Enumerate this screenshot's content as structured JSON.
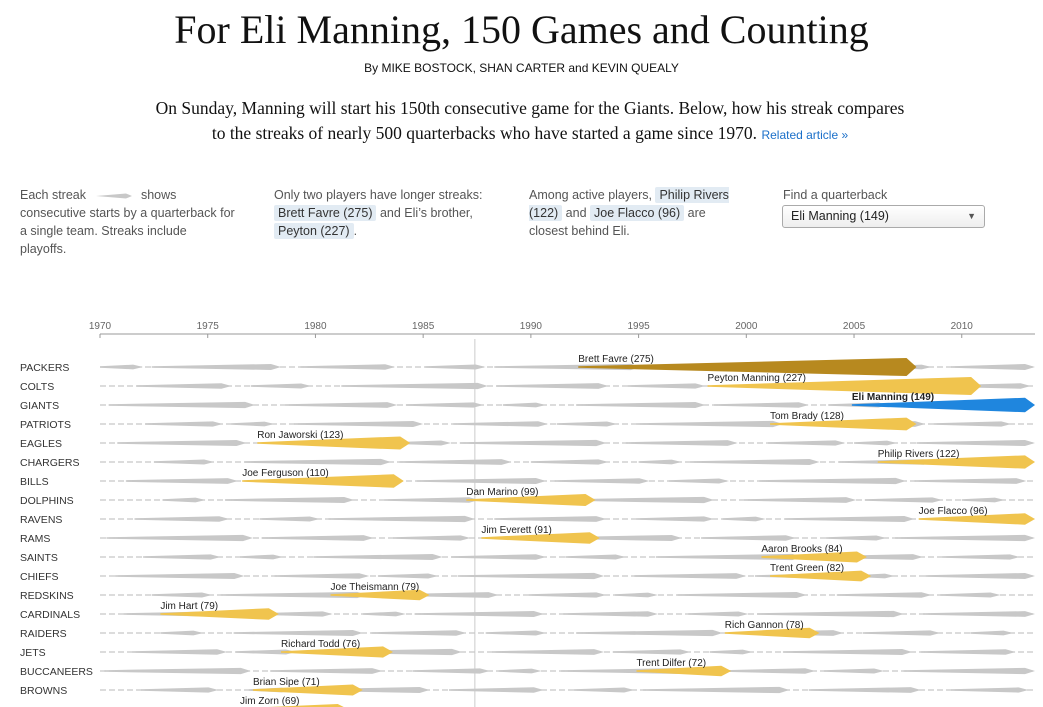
{
  "header": {
    "title": "For Eli Manning, 150 Games and Counting",
    "byline": "By MIKE BOSTOCK, SHAN CARTER and KEVIN QUEALY",
    "dek": "On Sunday, Manning will start his 150th consecutive game for the Giants. Below, how his streak compares to the streaks of nearly 500 quarterbacks who have started a game since 1970.",
    "related_link": "Related article »"
  },
  "notes": {
    "legend_pre": "Each streak",
    "legend_post": "shows consecutive starts by a quarterback for a single team. Streaks include playoffs.",
    "longer_pre": "Only two players have longer streaks:",
    "longer_chip1": "Brett Favre (275)",
    "longer_mid": "and Eli’s brother,",
    "longer_chip2": "Peyton (227)",
    "longer_end": ".",
    "active_pre": "Among active players,",
    "active_chip1": "Philip Rivers (122)",
    "active_mid": "and",
    "active_chip2": "Joe Flacco (96)",
    "active_post": "are closest behind Eli.",
    "find_label": "Find a quarterback",
    "find_value": "Eli Manning (149)"
  },
  "colors": {
    "gold": "#f0c44e",
    "favre": "#b7891f",
    "eli": "#1f86de",
    "gray": "#c8c8c8"
  },
  "chart_data": {
    "type": "timeline",
    "x_ticks": [
      1970,
      1975,
      1980,
      1985,
      1990,
      1995,
      2000,
      2005,
      2010
    ],
    "xlim": [
      1970,
      2013.4
    ],
    "teams": [
      "PACKERS",
      "COLTS",
      "GIANTS",
      "PATRIOTS",
      "EAGLES",
      "CHARGERS",
      "BILLS",
      "DOLPHINS",
      "RAVENS",
      "RAMS",
      "SAINTS",
      "CHIEFS",
      "REDSKINS",
      "CARDINALS",
      "RAIDERS",
      "JETS",
      "BUCCANEERS",
      "BROWNS"
    ],
    "streaks": [
      {
        "team": "PACKERS",
        "label": "Brett Favre (275)",
        "start": 1992.2,
        "end": 2007.9,
        "color": "#b7891f"
      },
      {
        "team": "COLTS",
        "label": "Peyton Manning (227)",
        "start": 1998.2,
        "end": 2010.9,
        "color": "#f0c44e"
      },
      {
        "team": "GIANTS",
        "label": "Eli Manning (149)",
        "start": 2004.9,
        "end": 2013.4,
        "color": "#1f86de",
        "highlight": true
      },
      {
        "team": "PATRIOTS",
        "label": "Tom Brady (128)",
        "start": 2001.1,
        "end": 2007.9,
        "color": "#f0c44e"
      },
      {
        "team": "EAGLES",
        "label": "Ron Jaworski (123)",
        "start": 1977.3,
        "end": 1984.4,
        "color": "#f0c44e"
      },
      {
        "team": "CHARGERS",
        "label": "Philip Rivers (122)",
        "start": 2006.1,
        "end": 2013.4,
        "color": "#f0c44e"
      },
      {
        "team": "BILLS",
        "label": "Joe Ferguson (110)",
        "start": 1976.6,
        "end": 1984.1,
        "color": "#f0c44e"
      },
      {
        "team": "DOLPHINS",
        "label": "Dan Marino (99)",
        "start": 1987.0,
        "end": 1993.0,
        "color": "#f0c44e"
      },
      {
        "team": "RAVENS",
        "label": "Joe Flacco (96)",
        "start": 2008.0,
        "end": 2013.4,
        "color": "#f0c44e"
      },
      {
        "team": "RAMS",
        "label": "Jim Everett (91)",
        "start": 1987.7,
        "end": 1993.2,
        "color": "#f0c44e"
      },
      {
        "team": "SAINTS",
        "label": "Aaron Brooks (84)",
        "start": 2000.7,
        "end": 2005.6,
        "color": "#f0c44e"
      },
      {
        "team": "CHIEFS",
        "label": "Trent Green (82)",
        "start": 2001.1,
        "end": 2005.8,
        "color": "#f0c44e"
      },
      {
        "team": "REDSKINS",
        "label": "Joe Theismann (79)",
        "start": 1980.7,
        "end": 1985.3,
        "color": "#f0c44e"
      },
      {
        "team": "CARDINALS",
        "label": "Jim Hart (79)",
        "start": 1972.8,
        "end": 1978.3,
        "color": "#f0c44e"
      },
      {
        "team": "RAIDERS",
        "label": "Rich Gannon (78)",
        "start": 1999.0,
        "end": 2003.4,
        "color": "#f0c44e"
      },
      {
        "team": "JETS",
        "label": "Richard Todd (76)",
        "start": 1978.4,
        "end": 1983.6,
        "color": "#f0c44e"
      },
      {
        "team": "BUCCANEERS",
        "label": "Trent Dilfer (72)",
        "start": 1994.9,
        "end": 1999.3,
        "color": "#f0c44e"
      },
      {
        "team": "BROWNS",
        "label": "Brian Sipe (71)",
        "start": 1977.1,
        "end": 1982.2,
        "color": "#f0c44e"
      }
    ],
    "extra_label": {
      "label": "Jim Zorn (69)",
      "start": 1976.5,
      "end": 1981.5
    },
    "marker_year": 1987.4
  }
}
